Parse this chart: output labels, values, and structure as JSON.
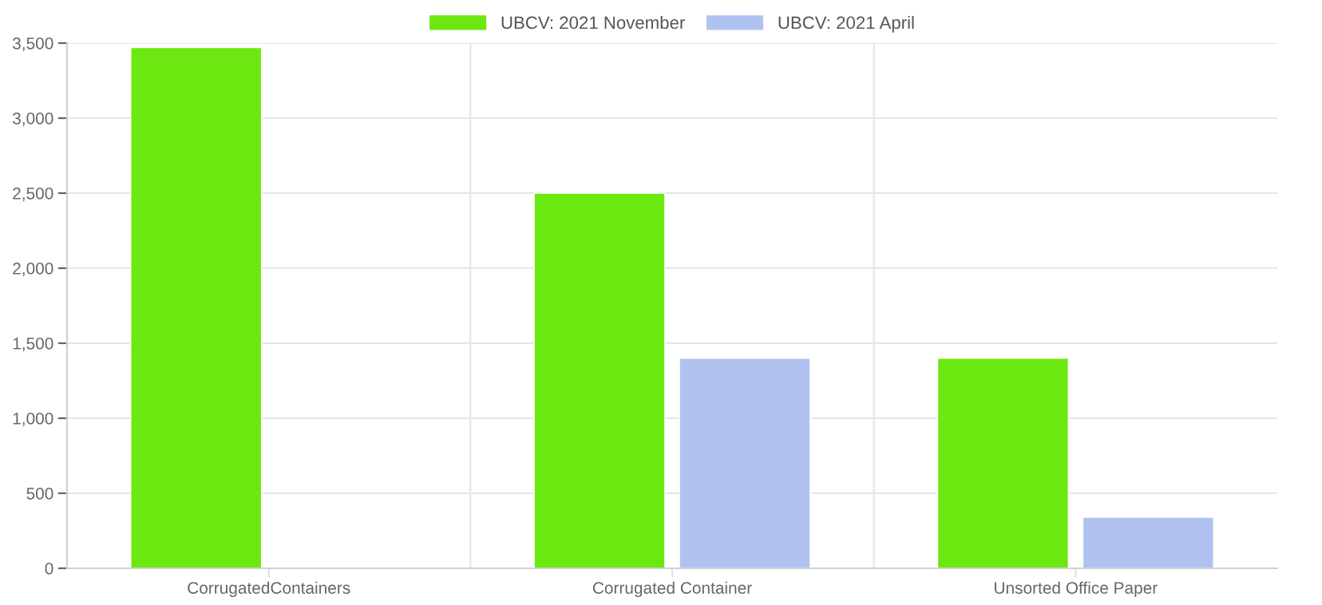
{
  "chart_data": {
    "type": "bar",
    "categories": [
      "CorrugatedContainers",
      "Corrugated Container",
      "Unsorted Office Paper"
    ],
    "series": [
      {
        "name": "UBCV: 2021 November",
        "color": "#6ce70f",
        "values": [
          3470,
          2500,
          1400
        ]
      },
      {
        "name": "UBCV: 2021 April",
        "color": "#b0c3f0",
        "values": [
          null,
          1400,
          340
        ]
      }
    ],
    "ylim": [
      0,
      3500
    ],
    "yticks": [
      {
        "value": 0,
        "label": "0"
      },
      {
        "value": 500,
        "label": "500"
      },
      {
        "value": 1000,
        "label": "1,000"
      },
      {
        "value": 1500,
        "label": "1,500"
      },
      {
        "value": 2000,
        "label": "2,000"
      },
      {
        "value": 2500,
        "label": "2,500"
      },
      {
        "value": 3000,
        "label": "3,000"
      },
      {
        "value": 3500,
        "label": "3,500"
      }
    ],
    "grid": true,
    "legend": "top"
  }
}
